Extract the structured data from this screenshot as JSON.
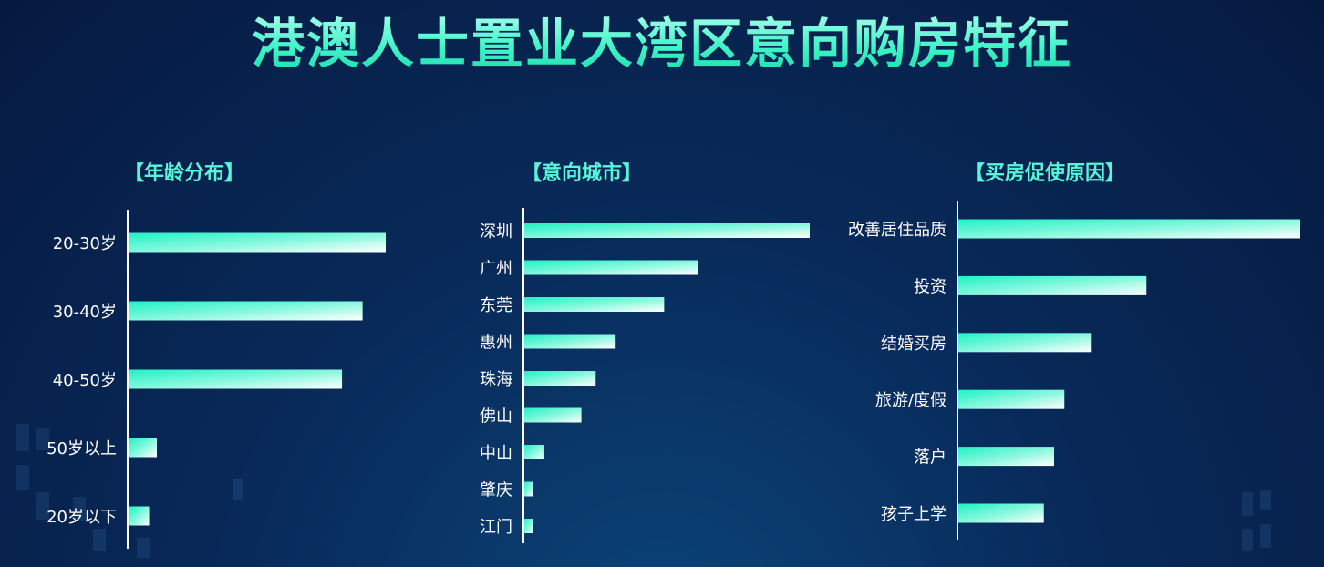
{
  "title": "港澳人士置业大湾区意向购房特征",
  "colors": {
    "bar_start": "#1ff2c4",
    "bar_end": "#ffffff",
    "title": "#3ff5c8",
    "axis": "#ffffff"
  },
  "chart_data": [
    {
      "type": "bar",
      "orientation": "horizontal",
      "title": "【年龄分布】",
      "categories": [
        "20-30岁",
        "30-40岁",
        "40-50岁",
        "50岁以上",
        "20岁以下"
      ],
      "values": [
        100,
        91,
        83,
        11,
        8
      ],
      "xlim": [
        0,
        100
      ]
    },
    {
      "type": "bar",
      "orientation": "horizontal",
      "title": "【意向城市】",
      "categories": [
        "深圳",
        "广州",
        "东莞",
        "惠州",
        "珠海",
        "佛山",
        "中山",
        "肇庆",
        "江门"
      ],
      "values": [
        100,
        61,
        49,
        32,
        25,
        20,
        7,
        3,
        3
      ],
      "xlim": [
        0,
        100
      ]
    },
    {
      "type": "bar",
      "orientation": "horizontal",
      "title": "【买房促使原因】",
      "categories": [
        "改善居住品质",
        "投资",
        "结婚买房",
        "旅游/度假",
        "落户",
        "孩子上学"
      ],
      "values": [
        100,
        55,
        39,
        31,
        28,
        25
      ],
      "xlim": [
        0,
        100
      ]
    }
  ]
}
